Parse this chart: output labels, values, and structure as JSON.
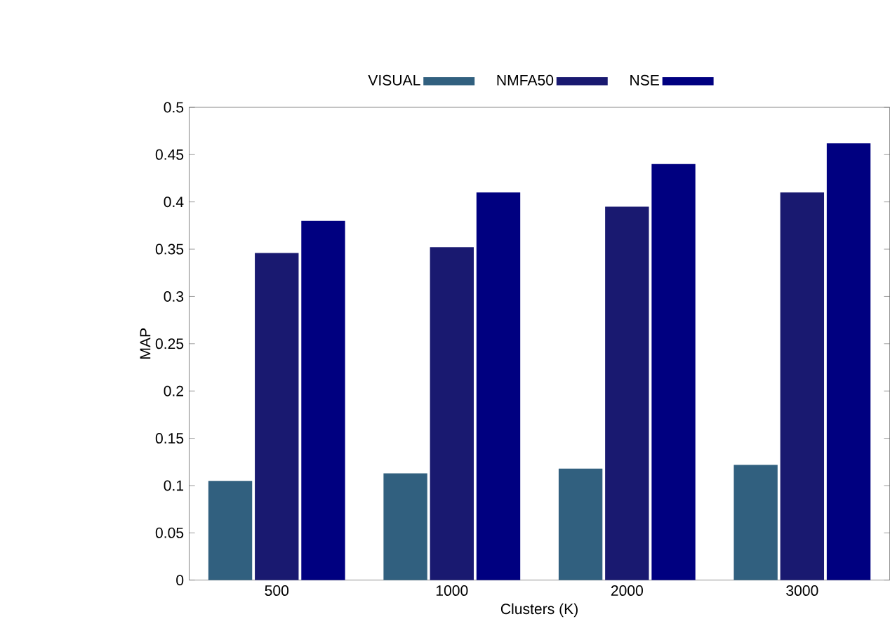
{
  "chart_data": {
    "type": "bar",
    "xlabel": "Clusters (K)",
    "ylabel": "MAP",
    "categories": [
      "500",
      "1000",
      "2000",
      "3000"
    ],
    "series": [
      {
        "name": "VISUAL",
        "color": "#31607f",
        "values": [
          0.105,
          0.113,
          0.118,
          0.122
        ]
      },
      {
        "name": "NMFA50",
        "color": "#191970",
        "values": [
          0.346,
          0.352,
          0.395,
          0.41
        ]
      },
      {
        "name": "NSE",
        "color": "#000080",
        "values": [
          0.38,
          0.41,
          0.44,
          0.462
        ]
      }
    ],
    "ylim": [
      0,
      0.5
    ],
    "yticks": [
      0,
      0.05,
      0.1,
      0.15,
      0.2,
      0.25,
      0.3,
      0.35,
      0.4,
      0.45,
      0.5
    ],
    "legend": "top",
    "grid": false
  }
}
